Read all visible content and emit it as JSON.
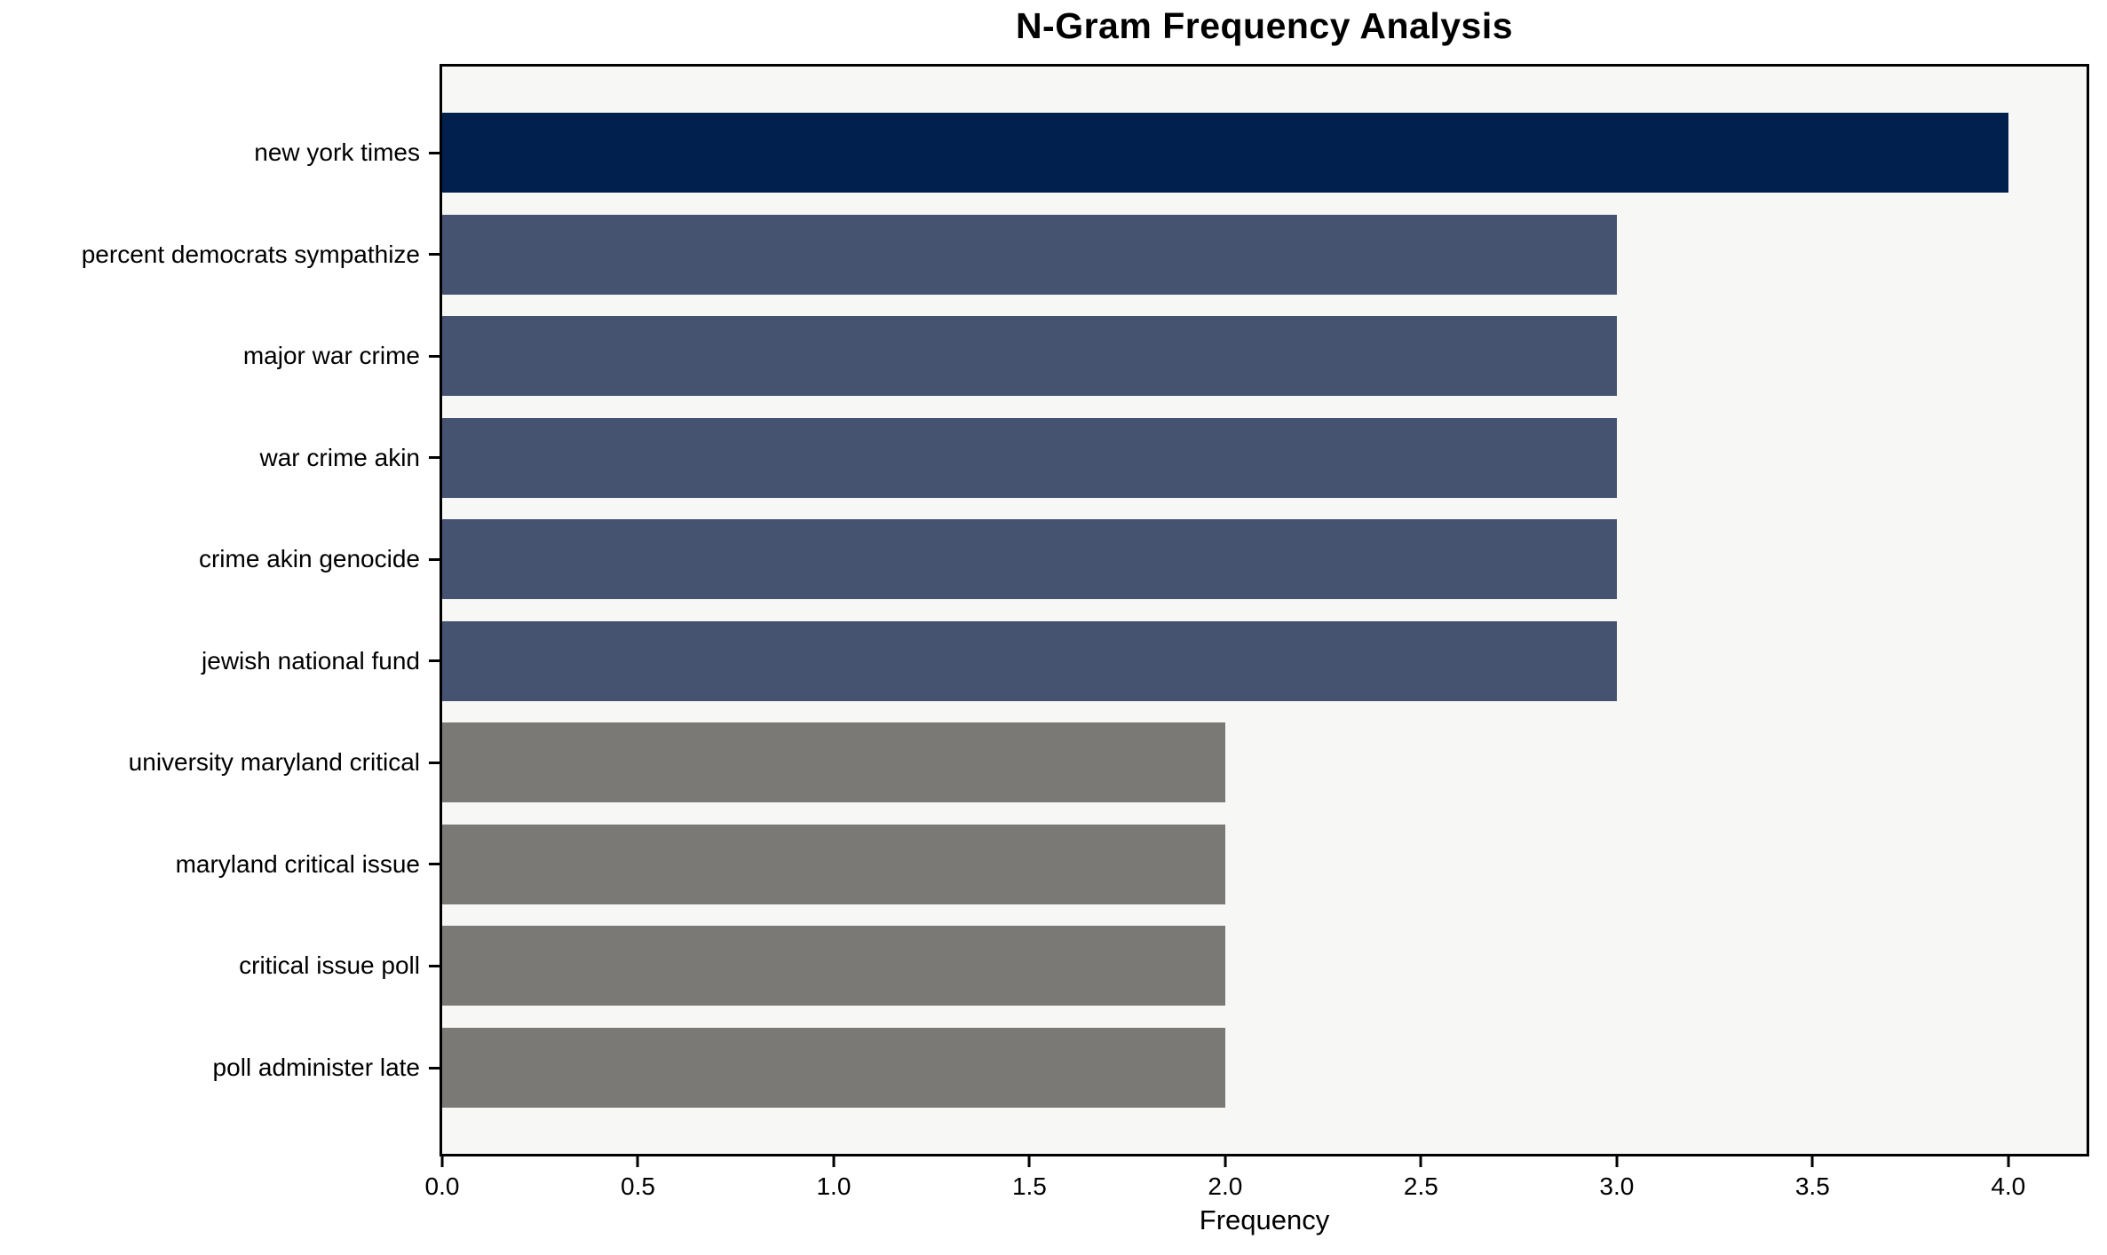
{
  "chart_data": {
    "type": "bar",
    "orientation": "horizontal",
    "title": "N-Gram Frequency Analysis",
    "xlabel": "Frequency",
    "ylabel": "",
    "categories": [
      "new york times",
      "percent democrats sympathize",
      "major war crime",
      "war crime akin",
      "crime akin genocide",
      "jewish national fund",
      "university maryland critical",
      "maryland critical issue",
      "critical issue poll",
      "poll administer late"
    ],
    "values": [
      4,
      3,
      3,
      3,
      3,
      3,
      2,
      2,
      2,
      2
    ],
    "bar_colors": [
      "#01204e",
      "#455371",
      "#455371",
      "#455371",
      "#455371",
      "#455371",
      "#7b7975",
      "#7b7975",
      "#7b7975",
      "#7b7975"
    ],
    "color_map": {
      "4": "#01204e",
      "3": "#455371",
      "2": "#7b7975"
    },
    "xlim": [
      0,
      4.2
    ],
    "xticks": [
      0.0,
      0.5,
      1.0,
      1.5,
      2.0,
      2.5,
      3.0,
      3.5,
      4.0
    ],
    "xtick_labels": [
      "0.0",
      "0.5",
      "1.0",
      "1.5",
      "2.0",
      "2.5",
      "3.0",
      "3.5",
      "4.0"
    ],
    "grid": false,
    "legend": null,
    "plot_background": "#f7f7f6",
    "figure_background": "#ffffff",
    "bar_height_ratio": 0.8
  }
}
